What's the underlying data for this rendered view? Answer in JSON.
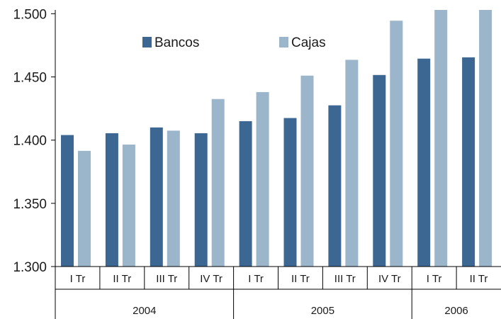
{
  "chart_data": {
    "type": "bar",
    "categories": [
      "I Tr",
      "II Tr",
      "III Tr",
      "IV Tr",
      "I Tr",
      "II Tr",
      "III Tr",
      "IV Tr",
      "I Tr",
      "II Tr"
    ],
    "groups": [
      {
        "label": "2004",
        "start": 0,
        "end": 3
      },
      {
        "label": "2005",
        "start": 4,
        "end": 7
      },
      {
        "label": "2006",
        "start": 8,
        "end": 9
      }
    ],
    "series": [
      {
        "name": "Bancos",
        "color": "#3b6792",
        "values": [
          1404,
          1405.5,
          1410,
          1405.5,
          1415,
          1417.5,
          1427.5,
          1451.5,
          1464.5,
          1465.5
        ]
      },
      {
        "name": "Cajas",
        "color": "#9bb5cb",
        "values": [
          1391.5,
          1396.5,
          1407.5,
          1432.5,
          1438,
          1451,
          1463.5,
          1494.5,
          1503,
          1503
        ]
      }
    ],
    "ylim": [
      1300,
      1503
    ],
    "yticks": [
      1300,
      1350,
      1400,
      1450,
      1500
    ],
    "ytick_labels": [
      "1.300",
      "1.350",
      "1.400",
      "1.450",
      "1.500"
    ],
    "title": "",
    "xlabel": "",
    "ylabel": "",
    "grid": false,
    "legend": "top-left"
  }
}
